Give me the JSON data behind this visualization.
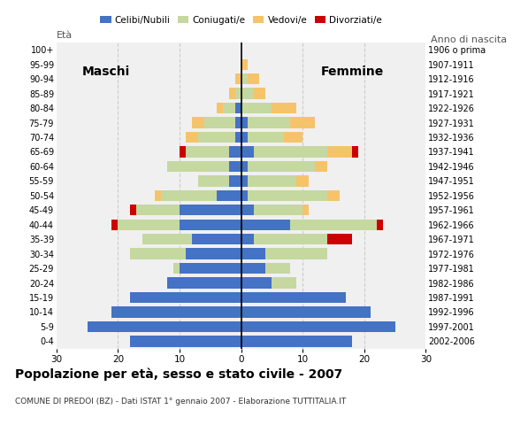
{
  "age_groups": [
    "0-4",
    "5-9",
    "10-14",
    "15-19",
    "20-24",
    "25-29",
    "30-34",
    "35-39",
    "40-44",
    "45-49",
    "50-54",
    "55-59",
    "60-64",
    "65-69",
    "70-74",
    "75-79",
    "80-84",
    "85-89",
    "90-94",
    "95-99",
    "100+"
  ],
  "birth_years": [
    "2002-2006",
    "1997-2001",
    "1992-1996",
    "1987-1991",
    "1982-1986",
    "1977-1981",
    "1972-1976",
    "1967-1971",
    "1962-1966",
    "1957-1961",
    "1952-1956",
    "1947-1951",
    "1942-1946",
    "1937-1941",
    "1932-1936",
    "1927-1931",
    "1922-1926",
    "1917-1921",
    "1912-1916",
    "1907-1911",
    "1906 o prima"
  ],
  "males": {
    "celibinubili": [
      18,
      25,
      21,
      18,
      12,
      10,
      9,
      8,
      10,
      10,
      4,
      2,
      2,
      2,
      1,
      1,
      1,
      0,
      0,
      0,
      0
    ],
    "coniugati": [
      0,
      0,
      0,
      0,
      0,
      1,
      9,
      8,
      10,
      7,
      9,
      5,
      10,
      7,
      6,
      5,
      2,
      1,
      0,
      0,
      0
    ],
    "vedovi": [
      0,
      0,
      0,
      0,
      0,
      0,
      0,
      0,
      0,
      0,
      1,
      0,
      0,
      0,
      2,
      2,
      1,
      1,
      1,
      0,
      0
    ],
    "divorziati": [
      0,
      0,
      0,
      0,
      0,
      0,
      0,
      0,
      1,
      1,
      0,
      0,
      0,
      1,
      0,
      0,
      0,
      0,
      0,
      0,
      0
    ]
  },
  "females": {
    "nubili": [
      18,
      25,
      21,
      17,
      5,
      4,
      4,
      2,
      8,
      2,
      1,
      1,
      1,
      2,
      1,
      1,
      0,
      0,
      0,
      0,
      0
    ],
    "coniugate": [
      0,
      0,
      0,
      0,
      4,
      4,
      10,
      12,
      14,
      8,
      13,
      8,
      11,
      12,
      6,
      7,
      5,
      2,
      1,
      0,
      0
    ],
    "vedove": [
      0,
      0,
      0,
      0,
      0,
      0,
      0,
      0,
      0,
      1,
      2,
      2,
      2,
      4,
      3,
      4,
      4,
      2,
      2,
      1,
      0
    ],
    "divorziate": [
      0,
      0,
      0,
      0,
      0,
      0,
      0,
      4,
      1,
      0,
      0,
      0,
      0,
      1,
      0,
      0,
      0,
      0,
      0,
      0,
      0
    ]
  },
  "colors": {
    "celibinubili": "#4472c4",
    "coniugati": "#c5d8a0",
    "vedovi": "#f5c46a",
    "divorziati": "#cc0000"
  },
  "title": "Popolazione per età, sesso e stato civile - 2007",
  "subtitle": "COMUNE DI PREDOI (BZ) - Dati ISTAT 1° gennaio 2007 - Elaborazione TUTTITALIA.IT",
  "label_eta": "Età",
  "label_anno": "Anno di nascita",
  "label_maschi": "Maschi",
  "label_femmine": "Femmine",
  "xlim": 30,
  "legend_labels": [
    "Celibi/Nubili",
    "Coniugati/e",
    "Vedovi/e",
    "Divorziati/e"
  ],
  "bg_color": "#ffffff",
  "plot_bg_color": "#f0f0f0",
  "grid_color": "#cccccc",
  "bar_height": 0.75
}
